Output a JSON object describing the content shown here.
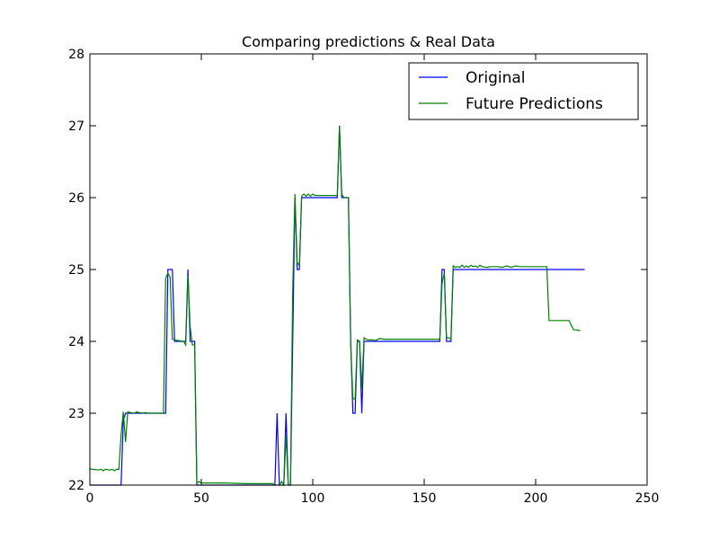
{
  "chart_data": {
    "type": "line",
    "title": "Comparing predictions & Real Data",
    "xlabel": "",
    "ylabel": "",
    "xlim": [
      0,
      250
    ],
    "ylim": [
      22,
      28
    ],
    "x_ticks": [
      0,
      50,
      100,
      150,
      200,
      250
    ],
    "y_ticks": [
      22,
      23,
      24,
      25,
      26,
      27,
      28
    ],
    "grid": false,
    "legend_position": "top-right",
    "series": [
      {
        "name": "Original",
        "color": "#0000ff",
        "points": [
          [
            0,
            22
          ],
          [
            14,
            22
          ],
          [
            15,
            22.9
          ],
          [
            16,
            23
          ],
          [
            24,
            23
          ],
          [
            34,
            23
          ],
          [
            35,
            25
          ],
          [
            37,
            25
          ],
          [
            38,
            24
          ],
          [
            43,
            24
          ],
          [
            44,
            25
          ],
          [
            45,
            24
          ],
          [
            47,
            24
          ],
          [
            48,
            22
          ],
          [
            83,
            22
          ],
          [
            84,
            23
          ],
          [
            85,
            22
          ],
          [
            87,
            22
          ],
          [
            88,
            23
          ],
          [
            89,
            22
          ],
          [
            90,
            22
          ],
          [
            91,
            24
          ],
          [
            92,
            26
          ],
          [
            93,
            25
          ],
          [
            94,
            25
          ],
          [
            95,
            26
          ],
          [
            111,
            26
          ],
          [
            112,
            27
          ],
          [
            113,
            26
          ],
          [
            116,
            26
          ],
          [
            117,
            24
          ],
          [
            118,
            23
          ],
          [
            119,
            23
          ],
          [
            120,
            24
          ],
          [
            121,
            24
          ],
          [
            122,
            23
          ],
          [
            123,
            24
          ],
          [
            157,
            24
          ],
          [
            158,
            25
          ],
          [
            159,
            25
          ],
          [
            160,
            24
          ],
          [
            162,
            24
          ],
          [
            163,
            25
          ],
          [
            222,
            25
          ]
        ]
      },
      {
        "name": "Future Predictions",
        "color": "#008000",
        "points": [
          [
            0,
            22.23
          ],
          [
            1,
            22.22
          ],
          [
            4,
            22.21
          ],
          [
            5,
            22.22
          ],
          [
            6,
            22.2
          ],
          [
            7,
            22.22
          ],
          [
            9,
            22.21
          ],
          [
            10,
            22.22
          ],
          [
            11,
            22.2
          ],
          [
            12,
            22.22
          ],
          [
            13,
            22.22
          ],
          [
            14,
            22.7
          ],
          [
            15,
            23.02
          ],
          [
            16,
            22.6
          ],
          [
            17,
            23.02
          ],
          [
            18,
            23.01
          ],
          [
            20,
            23.0
          ],
          [
            21,
            23.02
          ],
          [
            22,
            23.01
          ],
          [
            24,
            23.0
          ],
          [
            25,
            23.01
          ],
          [
            26,
            23.0
          ],
          [
            28,
            23.0
          ],
          [
            30,
            23.0
          ],
          [
            33,
            23.0
          ],
          [
            34,
            24.88
          ],
          [
            35,
            24.95
          ],
          [
            36,
            24.9
          ],
          [
            37,
            24.03
          ],
          [
            38,
            24.02
          ],
          [
            40,
            24.01
          ],
          [
            42,
            24.0
          ],
          [
            43,
            23.95
          ],
          [
            44,
            24.92
          ],
          [
            45,
            24.2
          ],
          [
            46,
            23.95
          ],
          [
            47,
            23.95
          ],
          [
            48,
            22.03
          ],
          [
            49,
            22.05
          ],
          [
            50,
            22.03
          ],
          [
            60,
            22.03
          ],
          [
            70,
            22.02
          ],
          [
            82,
            22.02
          ],
          [
            83,
            22.0
          ],
          [
            84,
            22.0
          ],
          [
            85,
            22.0
          ],
          [
            86,
            22.05
          ],
          [
            87,
            22.0
          ],
          [
            88,
            22.7
          ],
          [
            89,
            22.0
          ],
          [
            90,
            22.0
          ],
          [
            91,
            24.7
          ],
          [
            92,
            26.05
          ],
          [
            93,
            25.1
          ],
          [
            94,
            25.05
          ],
          [
            95,
            26.02
          ],
          [
            96,
            26.05
          ],
          [
            97,
            26.02
          ],
          [
            98,
            26.05
          ],
          [
            99,
            26.02
          ],
          [
            100,
            26.05
          ],
          [
            101,
            26.03
          ],
          [
            102,
            26.03
          ],
          [
            104,
            26.03
          ],
          [
            106,
            26.03
          ],
          [
            108,
            26.03
          ],
          [
            110,
            26.03
          ],
          [
            111,
            26.03
          ],
          [
            112,
            27.0
          ],
          [
            113,
            26.05
          ],
          [
            114,
            26.0
          ],
          [
            115,
            26.0
          ],
          [
            116,
            26.0
          ],
          [
            117,
            24.0
          ],
          [
            118,
            23.2
          ],
          [
            119,
            23.2
          ],
          [
            120,
            24.02
          ],
          [
            121,
            24.0
          ],
          [
            122,
            23.35
          ],
          [
            123,
            24.05
          ],
          [
            124,
            24.03
          ],
          [
            125,
            24.02
          ],
          [
            127,
            24.02
          ],
          [
            128,
            24.01
          ],
          [
            130,
            24.04
          ],
          [
            132,
            24.03
          ],
          [
            134,
            24.03
          ],
          [
            140,
            24.03
          ],
          [
            150,
            24.03
          ],
          [
            157,
            24.03
          ],
          [
            158,
            24.8
          ],
          [
            159,
            24.95
          ],
          [
            160,
            24.05
          ],
          [
            161,
            24.05
          ],
          [
            162,
            24.03
          ],
          [
            163,
            25.05
          ],
          [
            164,
            25.03
          ],
          [
            165,
            25.04
          ],
          [
            166,
            25.03
          ],
          [
            167,
            25.06
          ],
          [
            168,
            25.03
          ],
          [
            169,
            25.05
          ],
          [
            170,
            25.03
          ],
          [
            171,
            25.06
          ],
          [
            172,
            25.04
          ],
          [
            173,
            25.05
          ],
          [
            174,
            25.03
          ],
          [
            175,
            25.06
          ],
          [
            176,
            25.04
          ],
          [
            178,
            25.03
          ],
          [
            180,
            25.04
          ],
          [
            183,
            25.04
          ],
          [
            185,
            25.03
          ],
          [
            187,
            25.05
          ],
          [
            189,
            25.03
          ],
          [
            191,
            25.05
          ],
          [
            193,
            25.04
          ],
          [
            195,
            25.04
          ],
          [
            200,
            25.04
          ],
          [
            205,
            25.04
          ],
          [
            206,
            24.29
          ],
          [
            210,
            24.29
          ],
          [
            215,
            24.29
          ],
          [
            217,
            24.16
          ],
          [
            218,
            24.16
          ],
          [
            220,
            24.15
          ]
        ]
      }
    ]
  }
}
